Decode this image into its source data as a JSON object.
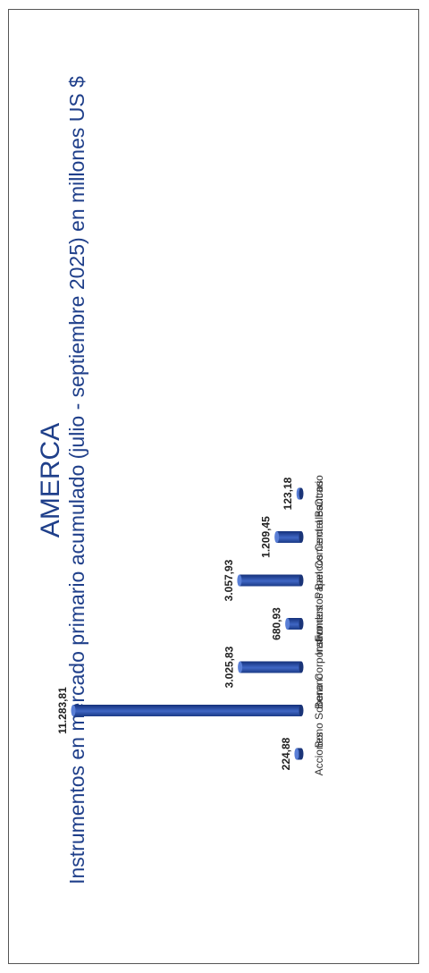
{
  "chart_data": {
    "type": "bar",
    "title": "AMERCA",
    "subtitle": "Instrumentos en mercado primario acumulado (julio - septiembre 2025) en millones US $",
    "categories": [
      "Acciones",
      "Bono Soberano",
      "Bono Corporativo",
      "Fondos",
      "Instrumentos Bancos Centrales",
      "Papel Comercial Bancario",
      "Otros"
    ],
    "values": [
      224.88,
      11283.81,
      3025.83,
      680.93,
      3057.93,
      1209.45,
      123.18
    ],
    "value_labels": [
      "224,88",
      "11.283,81",
      "3.025,83",
      "680,93",
      "3.057,93",
      "1.209,45",
      "123,18"
    ],
    "ylim": [
      0,
      11283.81
    ],
    "grid": false,
    "bar_color": "#2c4fa3",
    "orientation_note": "rotated 90 degrees counter-clockwise"
  }
}
